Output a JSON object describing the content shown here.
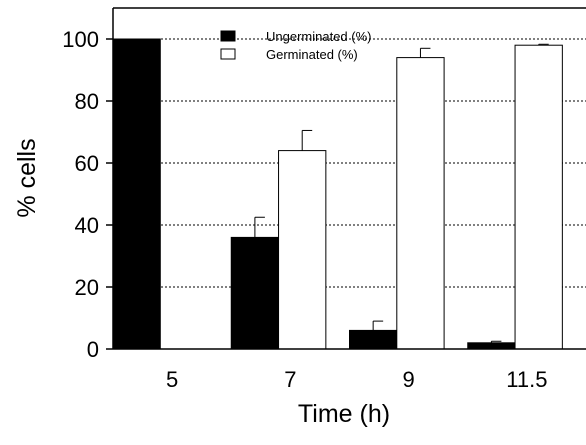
{
  "chart_data": {
    "type": "bar",
    "title": "",
    "xlabel": "Time (h)",
    "ylabel": "% cells",
    "categories": [
      "5",
      "7",
      "9",
      "11.5"
    ],
    "ylim": [
      0,
      110
    ],
    "yticks": [
      0,
      20,
      40,
      60,
      80,
      100
    ],
    "grid": "horizontal dotted",
    "legend_position": "top-center",
    "series": [
      {
        "name": "Ungerminated (%)",
        "fill": "#000000",
        "values": [
          100,
          36,
          6,
          2
        ],
        "errors": [
          0,
          6.5,
          3,
          0.5
        ]
      },
      {
        "name": "Germinated (%)",
        "fill": "#ffffff",
        "values": [
          0,
          64,
          94,
          98
        ],
        "errors": [
          0,
          6.5,
          3,
          0.3
        ]
      }
    ]
  }
}
